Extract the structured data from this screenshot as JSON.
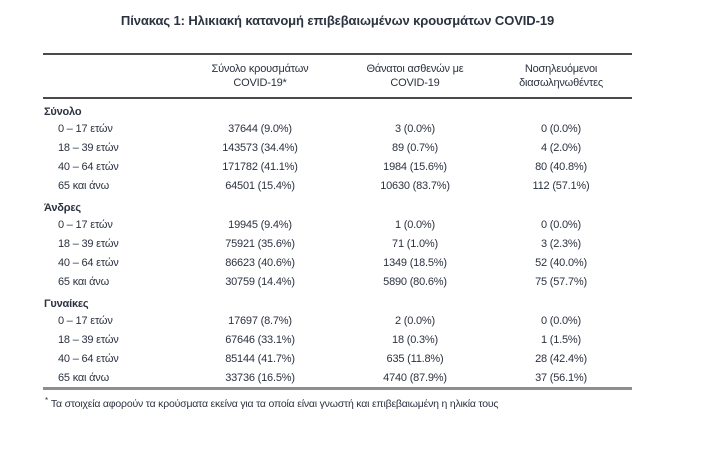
{
  "title": "Πίνακας 1: Ηλικιακή κατανομή επιβεβαιωμένων κρουσμάτων COVID-19",
  "table": {
    "headers": [
      {
        "line1": "Σύνολο κρουσμάτων",
        "line2": "COVID-19*"
      },
      {
        "line1": "Θάνατοι ασθενών με",
        "line2": "COVID-19"
      },
      {
        "line1": "Νοσηλευόμενοι",
        "line2": "διασωληνωθέντες"
      }
    ],
    "sections": [
      {
        "label": "Σύνολο",
        "rows": [
          {
            "age": "0 – 17 ετών",
            "cases": "37644 (9.0%)",
            "deaths": "3 (0.0%)",
            "intubated": "0 (0.0%)"
          },
          {
            "age": "18 – 39 ετών",
            "cases": "143573 (34.4%)",
            "deaths": "89 (0.7%)",
            "intubated": "4 (2.0%)"
          },
          {
            "age": "40 – 64 ετών",
            "cases": "171782 (41.1%)",
            "deaths": "1984 (15.6%)",
            "intubated": "80 (40.8%)"
          },
          {
            "age": "65 και άνω",
            "cases": "64501 (15.4%)",
            "deaths": "10630 (83.7%)",
            "intubated": "112 (57.1%)"
          }
        ]
      },
      {
        "label": "Άνδρες",
        "rows": [
          {
            "age": "0 – 17 ετών",
            "cases": "19945 (9.4%)",
            "deaths": "1 (0.0%)",
            "intubated": "0 (0.0%)"
          },
          {
            "age": "18 – 39 ετών",
            "cases": "75921 (35.6%)",
            "deaths": "71 (1.0%)",
            "intubated": "3 (2.3%)"
          },
          {
            "age": "40 – 64 ετών",
            "cases": "86623 (40.6%)",
            "deaths": "1349 (18.5%)",
            "intubated": "52 (40.0%)"
          },
          {
            "age": "65 και άνω",
            "cases": "30759 (14.4%)",
            "deaths": "5890 (80.6%)",
            "intubated": "75 (57.7%)"
          }
        ]
      },
      {
        "label": "Γυναίκες",
        "rows": [
          {
            "age": "0 – 17 ετών",
            "cases": "17697 (8.7%)",
            "deaths": "2 (0.0%)",
            "intubated": "0 (0.0%)"
          },
          {
            "age": "18 – 39 ετών",
            "cases": "67646 (33.1%)",
            "deaths": "18 (0.3%)",
            "intubated": "1 (1.5%)"
          },
          {
            "age": "40 – 64 ετών",
            "cases": "85144 (41.7%)",
            "deaths": "635 (11.8%)",
            "intubated": "28 (42.4%)"
          },
          {
            "age": "65 και άνω",
            "cases": "33736 (16.5%)",
            "deaths": "4740 (87.9%)",
            "intubated": "37 (56.1%)"
          }
        ]
      }
    ]
  },
  "footnote": {
    "marker": "*",
    "text": "Τα στοιχεία αφορούν τα κρούσματα εκείνα για τα οποία είναι γνωστή και επιβεβαιωμένη η ηλικία τους"
  },
  "colors": {
    "text": "#2b3240",
    "rule_dark": "#4a4a4a",
    "rule_bottom": "#8e8e8e",
    "background": "#ffffff"
  }
}
